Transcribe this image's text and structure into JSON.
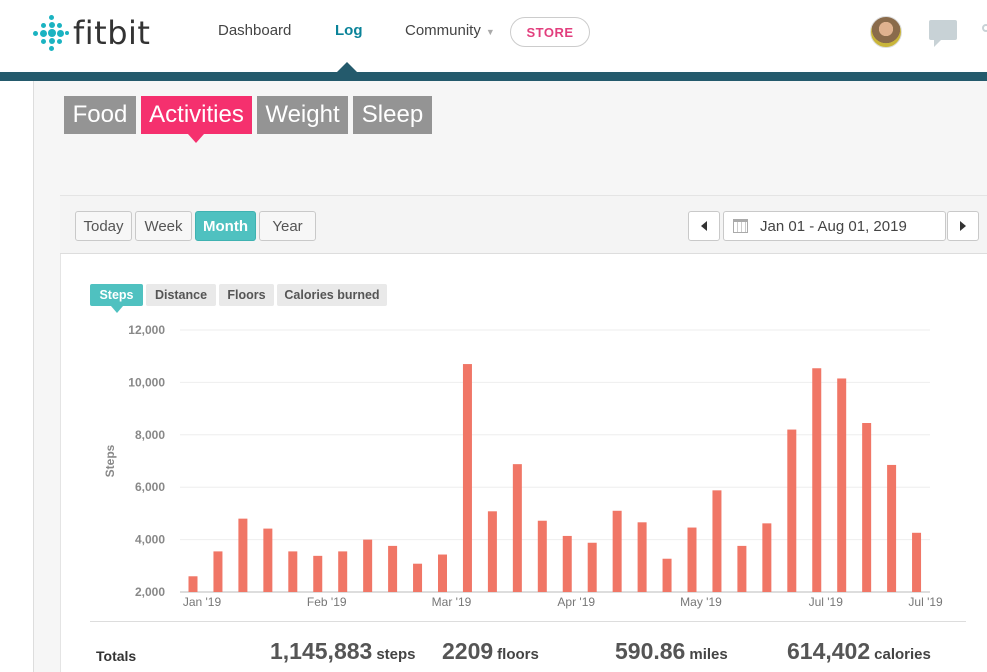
{
  "header": {
    "logo_text": "fitbit",
    "nav": [
      {
        "label": "Dashboard"
      },
      {
        "label": "Log"
      },
      {
        "label": "Community"
      }
    ],
    "store_label": "STORE"
  },
  "categories": [
    {
      "label": "Food"
    },
    {
      "label": "Activities"
    },
    {
      "label": "Weight"
    },
    {
      "label": "Sleep"
    }
  ],
  "range_buttons": [
    {
      "label": "Today"
    },
    {
      "label": "Week"
    },
    {
      "label": "Month"
    },
    {
      "label": "Year"
    }
  ],
  "date_range": "Jan 01 - Aug 01, 2019",
  "metric_tabs": [
    {
      "label": "Steps"
    },
    {
      "label": "Distance"
    },
    {
      "label": "Floors"
    },
    {
      "label": "Calories burned"
    }
  ],
  "colors": {
    "bar": "#f07666",
    "accent": "#4fc1c0",
    "activities": "#f5306e",
    "header_bar": "#245a6c"
  },
  "chart_data": {
    "type": "bar",
    "ylabel": "Steps",
    "xlabel": "",
    "ylim": [
      2000,
      12000
    ],
    "yticks": [
      "2,000",
      "4,000",
      "6,000",
      "8,000",
      "10,000",
      "12,000"
    ],
    "ytick_values": [
      2000,
      4000,
      6000,
      8000,
      10000,
      12000
    ],
    "xtick_labels": [
      {
        "label": "Jan '19",
        "at_bar": 0
      },
      {
        "label": "Feb '19",
        "at_bar": 5
      },
      {
        "label": "Mar '19",
        "at_bar": 10
      },
      {
        "label": "Apr '19",
        "at_bar": 15
      },
      {
        "label": "May '19",
        "at_bar": 20
      },
      {
        "label": "Jul '19",
        "at_bar": 25
      },
      {
        "label": "Jul '19",
        "at_bar": 29
      }
    ],
    "values": [
      2600,
      3550,
      4800,
      4420,
      3550,
      3380,
      3550,
      4000,
      3760,
      3080,
      3430,
      10700,
      5080,
      6880,
      4720,
      4140,
      3880,
      5100,
      4660,
      3270,
      4460,
      5880,
      3760,
      4620,
      8200,
      10540,
      10150,
      8450,
      6850,
      4260
    ],
    "grid": true,
    "legend": "none"
  },
  "totals": {
    "label": "Totals",
    "steps": {
      "value": "1,145,883",
      "unit": "steps"
    },
    "floors": {
      "value": "2209",
      "unit": "floors"
    },
    "miles": {
      "value": "590.86",
      "unit": "miles"
    },
    "calories": {
      "value": "614,402",
      "unit": "calories"
    }
  }
}
